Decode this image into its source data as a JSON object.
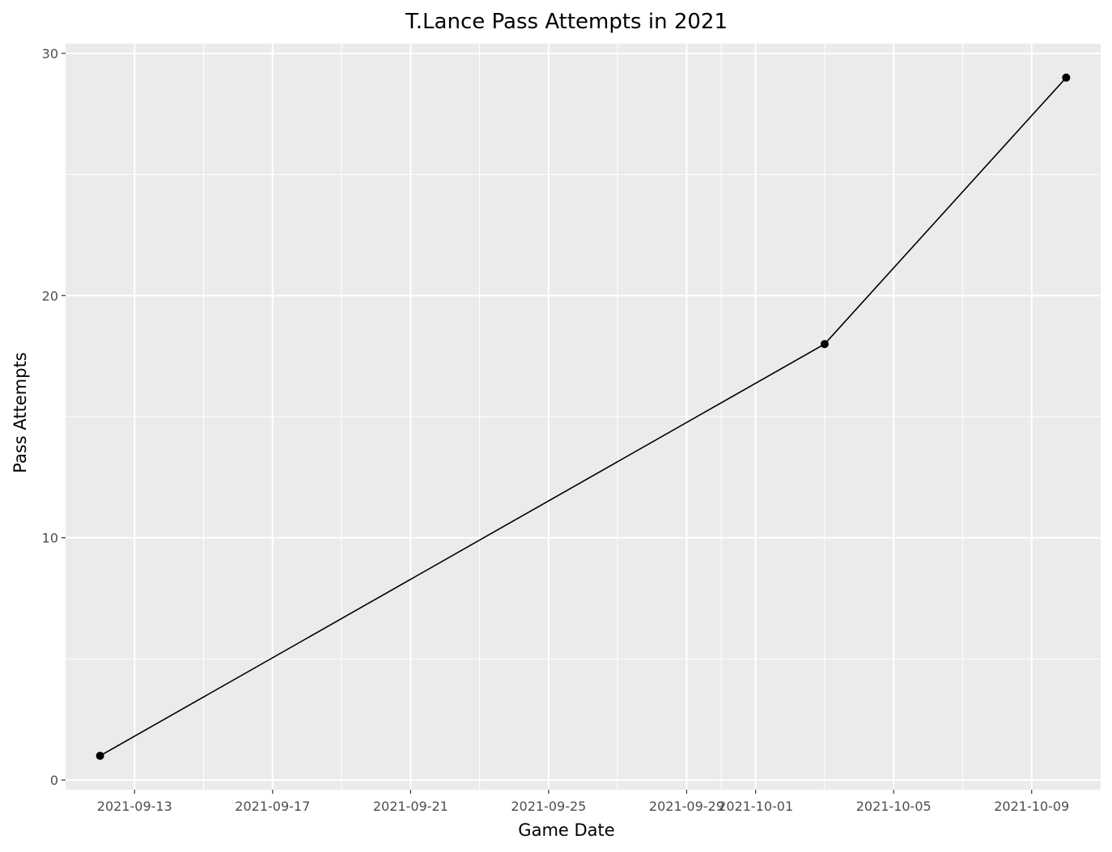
{
  "chart_data": {
    "type": "line",
    "title": "T.Lance Pass Attempts in 2021",
    "xlabel": "Game Date",
    "ylabel": "Pass Attempts",
    "x_axis_type": "date",
    "xlim": [
      "2021-09-11",
      "2021-10-11"
    ],
    "ylim": [
      -0.4,
      30.4
    ],
    "x_ticks": [
      "2021-09-13",
      "2021-09-17",
      "2021-09-21",
      "2021-09-25",
      "2021-09-29",
      "2021-10-01",
      "2021-10-05",
      "2021-10-09"
    ],
    "y_ticks": [
      0,
      10,
      20,
      30
    ],
    "grid": true,
    "legend": "none",
    "series": [
      {
        "x": [
          "2021-09-12",
          "2021-10-03",
          "2021-10-10"
        ],
        "y": [
          1,
          18,
          29
        ],
        "color": "#000000",
        "markers": true
      }
    ],
    "panel_color": "#ebebeb",
    "grid_color": "#ffffff"
  }
}
